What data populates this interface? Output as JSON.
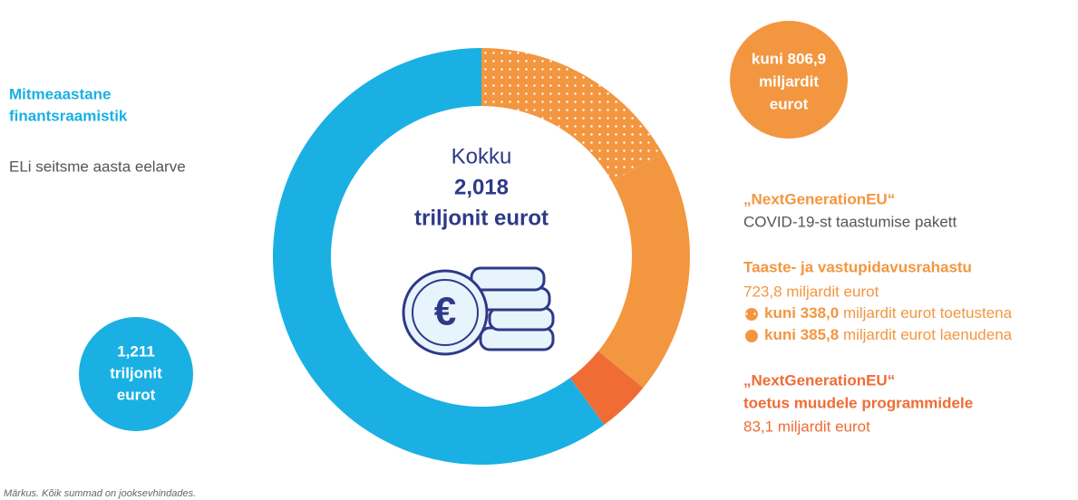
{
  "chart_data": {
    "type": "donut",
    "values": [
      338.0,
      385.8,
      83.1,
      1211
    ],
    "colors": [
      "#f39640",
      "#f39640",
      "#ef6c35",
      "#1ab0e4"
    ],
    "patterns": [
      "dots",
      "solid",
      "solid",
      "solid"
    ],
    "center_label": [
      "Kokku",
      "2,018",
      "triljonit eurot"
    ],
    "icon_symbol": "€"
  },
  "annotations": {
    "left_title": [
      "Mitmeaastane",
      "finantsraamistik"
    ],
    "left_subtitle": "ELi seitsme aasta eelarve",
    "left_bubble": [
      "1,211",
      "triljonit",
      "eurot"
    ],
    "top_bubble": [
      "kuni 806,9",
      "miljardit",
      "eurot"
    ],
    "ngeu_title": "„NextGenerationEU“",
    "ngeu_subtitle": "COVID-19-st taastumise pakett",
    "rrf_title": "Taaste- ja vastupidavusrahastu",
    "rrf_amount": "723,8 miljardit eurot",
    "rrf_items": [
      {
        "bold": "kuni 338,0",
        "text": " miljardit eurot toetustena"
      },
      {
        "bold": "kuni 385,8",
        "text": " miljardit eurot laenudena"
      }
    ],
    "other_title": [
      "„NextGenerationEU“",
      "toetus muudele programmidele"
    ],
    "other_amount": "83,1 miljardit eurot",
    "note": "Märkus. Kõik summad on jooksevhindades."
  }
}
